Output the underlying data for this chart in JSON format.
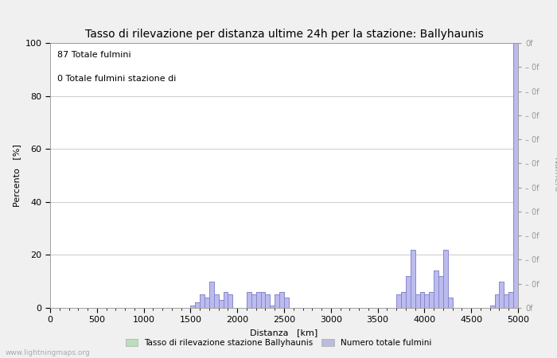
{
  "title": "Tasso di rilevazione per distanza ultime 24h per la stazione: Ballyhaunis",
  "xlabel": "Distanza   [km]",
  "ylabel_left": "Percento   [%]",
  "ylabel_right": "Numero",
  "annotation_line1": "87 Totale fulmini",
  "annotation_line2": "0 Totale fulmini stazione di",
  "xlim": [
    0,
    5000
  ],
  "ylim_left": [
    0,
    100
  ],
  "ylim_right": [
    0,
    100
  ],
  "xticks": [
    0,
    500,
    1000,
    1500,
    2000,
    2500,
    3000,
    3500,
    4000,
    4500,
    5000
  ],
  "yticks_left": [
    0,
    20,
    40,
    60,
    80,
    100
  ],
  "background_color": "#f0f0f0",
  "plot_bg_color": "#ffffff",
  "line_color": "#8888cc",
  "fill_color": "#bbbbee",
  "legend_detection_label": "Tasso di rilevazione stazione Ballyhaunis",
  "legend_count_label": "Numero totale fulmini",
  "legend_detection_color": "#bbddbb",
  "legend_count_color": "#bbbbdd",
  "watermark": "www.lightningmaps.org",
  "grid_color": "#cccccc",
  "title_fontsize": 10,
  "axis_label_fontsize": 8,
  "tick_fontsize": 8,
  "annotation_fontsize": 8
}
